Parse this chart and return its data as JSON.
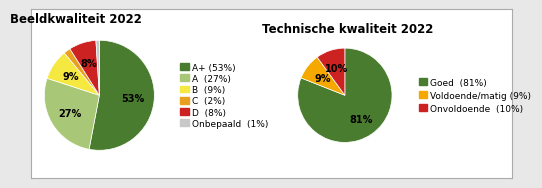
{
  "chart1": {
    "title": "Beeldkwaliteit 2022",
    "slices": [
      53,
      27,
      9,
      2,
      8,
      1
    ],
    "colors": [
      "#4a7c2f",
      "#a8c878",
      "#f5e840",
      "#e8a020",
      "#cc2222",
      "#c8c8c8"
    ],
    "labels": [
      "53%",
      "27%",
      "9%",
      "2%",
      "8%",
      "1%"
    ],
    "legend_labels": [
      "A+ (53%)",
      "A  (27%)",
      "B  (9%)",
      "C  (2%)",
      "D  (8%)",
      "Onbepaald  (1%)"
    ],
    "startangle": 90
  },
  "chart2": {
    "title": "Technische kwaliteit 2022",
    "slices": [
      81,
      9,
      10
    ],
    "colors": [
      "#4a7c2f",
      "#f5a800",
      "#cc2222"
    ],
    "labels": [
      "81%",
      "9%",
      "10%"
    ],
    "legend_labels": [
      "Goed  (81%)",
      "Voldoende/matig (9%)",
      "Onvoldoende  (10%)"
    ],
    "startangle": 90
  },
  "bg_color": "#ffffff",
  "outer_bg": "#e8e8e8",
  "title_fontsize": 8.5,
  "label_fontsize": 7,
  "legend_fontsize": 6.5
}
